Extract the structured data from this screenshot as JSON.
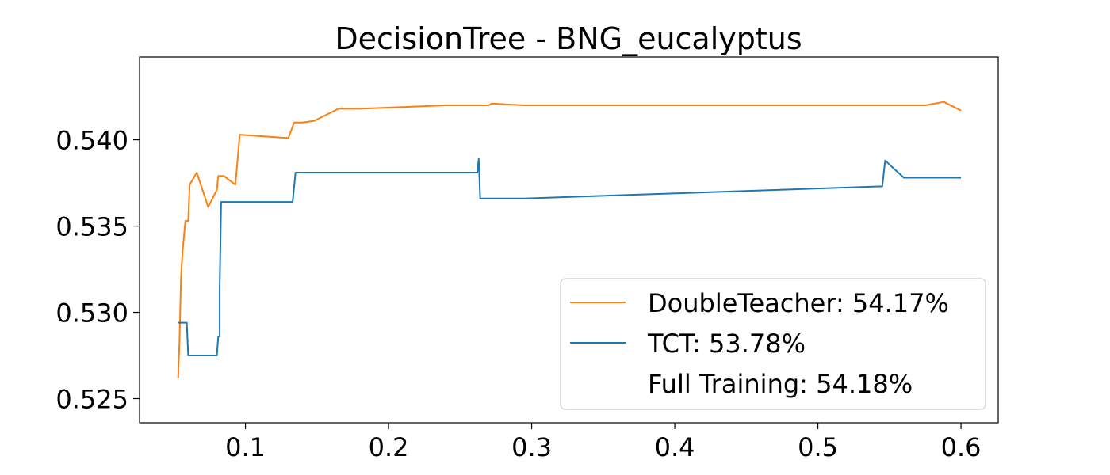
{
  "chart_data": {
    "type": "line",
    "title": "DecisionTree - BNG_eucalyptus",
    "xlabel": "",
    "ylabel": "",
    "xlim": [
      0.026,
      0.626
    ],
    "ylim": [
      0.5236,
      0.5448
    ],
    "x_ticks": [
      {
        "value": 0.1,
        "label": "0.1"
      },
      {
        "value": 0.2,
        "label": "0.2"
      },
      {
        "value": 0.3,
        "label": "0.3"
      },
      {
        "value": 0.4,
        "label": "0.4"
      },
      {
        "value": 0.5,
        "label": "0.5"
      },
      {
        "value": 0.6,
        "label": "0.6"
      }
    ],
    "y_ticks": [
      {
        "value": 0.525,
        "label": "0.525"
      },
      {
        "value": 0.53,
        "label": "0.530"
      },
      {
        "value": 0.535,
        "label": "0.535"
      },
      {
        "value": 0.54,
        "label": "0.540"
      }
    ],
    "grid": false,
    "legend_position": "bottom-right",
    "series": [
      {
        "name": "DoubleTeacher: 54.17%",
        "color": "#ff7f0e",
        "points": [
          [
            0.053,
            0.5262
          ],
          [
            0.054,
            0.5285
          ],
          [
            0.055,
            0.532
          ],
          [
            0.056,
            0.5335
          ],
          [
            0.058,
            0.5353
          ],
          [
            0.06,
            0.5353
          ],
          [
            0.061,
            0.5374
          ],
          [
            0.066,
            0.5381
          ],
          [
            0.074,
            0.5361
          ],
          [
            0.08,
            0.5371
          ],
          [
            0.081,
            0.5379
          ],
          [
            0.085,
            0.5379
          ],
          [
            0.093,
            0.5374
          ],
          [
            0.096,
            0.5403
          ],
          [
            0.13,
            0.5401
          ],
          [
            0.134,
            0.541
          ],
          [
            0.138,
            0.541
          ],
          [
            0.14,
            0.541
          ],
          [
            0.148,
            0.5411
          ],
          [
            0.165,
            0.5418
          ],
          [
            0.18,
            0.5418
          ],
          [
            0.24,
            0.542
          ],
          [
            0.27,
            0.542
          ],
          [
            0.272,
            0.5421
          ],
          [
            0.295,
            0.542
          ],
          [
            0.4,
            0.542
          ],
          [
            0.56,
            0.542
          ],
          [
            0.575,
            0.542
          ],
          [
            0.588,
            0.5422
          ],
          [
            0.6,
            0.5417
          ]
        ]
      },
      {
        "name": "TCT: 53.78%",
        "color": "#1f77b4",
        "points": [
          [
            0.053,
            0.5294
          ],
          [
            0.059,
            0.5294
          ],
          [
            0.06,
            0.5275
          ],
          [
            0.08,
            0.5275
          ],
          [
            0.081,
            0.5286
          ],
          [
            0.082,
            0.5286
          ],
          [
            0.082,
            0.5315
          ],
          [
            0.083,
            0.5364
          ],
          [
            0.133,
            0.5364
          ],
          [
            0.135,
            0.5381
          ],
          [
            0.262,
            0.5381
          ],
          [
            0.263,
            0.5389
          ],
          [
            0.264,
            0.5366
          ],
          [
            0.295,
            0.5366
          ],
          [
            0.545,
            0.5373
          ],
          [
            0.547,
            0.5388
          ],
          [
            0.56,
            0.5378
          ],
          [
            0.6,
            0.5378
          ]
        ]
      },
      {
        "name": "Full Training: 54.18%",
        "color": "#ffffff",
        "points": []
      }
    ]
  }
}
